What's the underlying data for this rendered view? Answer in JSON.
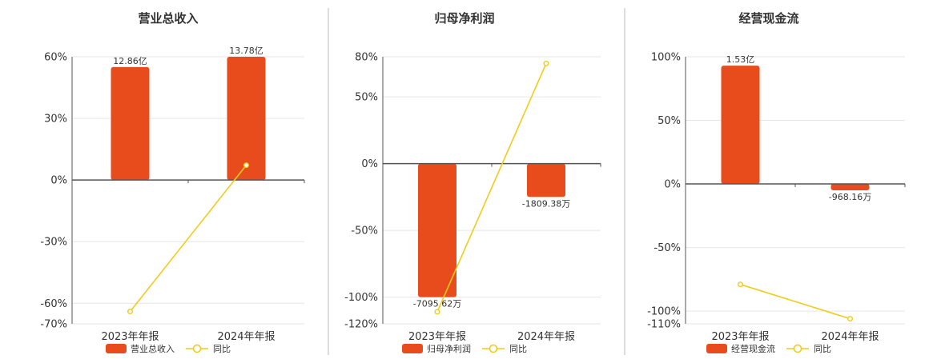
{
  "colors": {
    "bar": "#e84c1d",
    "line": "#f0cc1a",
    "grid": "#e6e6e6",
    "axis": "#555555",
    "divider": "#bbbbbb"
  },
  "chart_data": [
    {
      "type": "bar",
      "title": "营业总收入",
      "categories": [
        "2023年年报",
        "2024年年报"
      ],
      "bar_labels": [
        "12.86亿",
        "13.78亿"
      ],
      "bar_series_name": "营业总收入",
      "bar_values": [
        55,
        60
      ],
      "line_series_name": "同比",
      "line_values": [
        -64,
        7.2
      ],
      "ylim": [
        -70,
        60
      ],
      "yticks": [
        60,
        30,
        0,
        -30,
        -60,
        -70
      ],
      "ytick_labels": [
        "60%",
        "30%",
        "0%",
        "-30%",
        "-60%",
        "-70%"
      ],
      "legend": "bottom",
      "grid": true
    },
    {
      "type": "bar",
      "title": "归母净利润",
      "categories": [
        "2023年年报",
        "2024年年报"
      ],
      "bar_labels": [
        "-7095.62万",
        "-1809.38万"
      ],
      "bar_series_name": "归母净利润",
      "bar_values": [
        -100,
        -25
      ],
      "line_series_name": "同比",
      "line_values": [
        -111,
        75
      ],
      "ylim": [
        -120,
        80
      ],
      "yticks": [
        80,
        50,
        0,
        -50,
        -100,
        -120
      ],
      "ytick_labels": [
        "80%",
        "50%",
        "0%",
        "-50%",
        "-100%",
        "-120%"
      ],
      "legend": "bottom",
      "grid": true
    },
    {
      "type": "bar",
      "title": "经营现金流",
      "categories": [
        "2023年年报",
        "2024年年报"
      ],
      "bar_labels": [
        "1.53亿",
        "-968.16万"
      ],
      "bar_series_name": "经营现金流",
      "bar_values": [
        93,
        -5
      ],
      "line_series_name": "同比",
      "line_values": [
        -79,
        -106
      ],
      "ylim": [
        -110,
        100
      ],
      "yticks": [
        100,
        50,
        0,
        -50,
        -100,
        -110
      ],
      "ytick_labels": [
        "100%",
        "50%",
        "0%",
        "-50%",
        "-100%",
        "-110%"
      ],
      "legend": "bottom",
      "grid": true
    }
  ]
}
